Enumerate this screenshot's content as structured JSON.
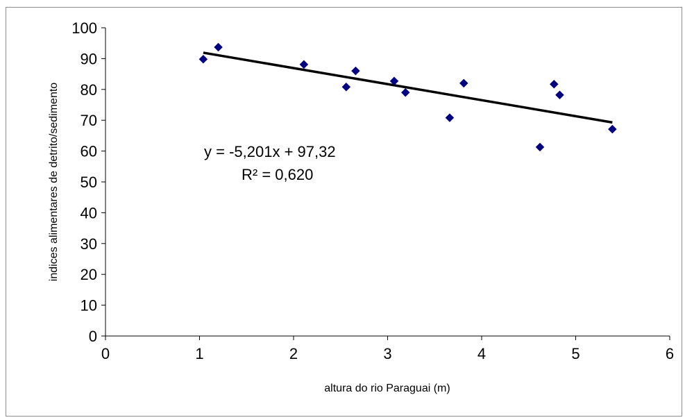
{
  "chart_data": {
    "type": "scatter",
    "title": "",
    "xlabel": "altura do rio Paraguai (m)",
    "ylabel": "indices alimentares de detrito/sedimento",
    "xlim": [
      0,
      6
    ],
    "ylim": [
      0,
      100
    ],
    "x_ticks": [
      "0",
      "1",
      "2",
      "3",
      "4",
      "5",
      "6"
    ],
    "y_ticks": [
      "0",
      "10",
      "20",
      "30",
      "40",
      "50",
      "60",
      "70",
      "80",
      "90",
      "100"
    ],
    "grid": false,
    "legend": "none",
    "marker_color": "#000080",
    "trendline_color": "#000000",
    "points": [
      {
        "x": 1.04,
        "y": 89.8
      },
      {
        "x": 1.2,
        "y": 93.7
      },
      {
        "x": 2.11,
        "y": 88.1
      },
      {
        "x": 2.56,
        "y": 80.8
      },
      {
        "x": 2.66,
        "y": 86.0
      },
      {
        "x": 3.07,
        "y": 82.7
      },
      {
        "x": 3.19,
        "y": 79.0
      },
      {
        "x": 3.66,
        "y": 70.8
      },
      {
        "x": 3.81,
        "y": 82.0
      },
      {
        "x": 4.62,
        "y": 61.3
      },
      {
        "x": 4.77,
        "y": 81.7
      },
      {
        "x": 4.83,
        "y": 78.2
      },
      {
        "x": 5.39,
        "y": 67.1
      }
    ],
    "trendline": {
      "slope": -5.201,
      "intercept": 97.32,
      "x_range": [
        1.04,
        5.39
      ]
    },
    "annotations": {
      "equation": "y = -5,201x + 97,32",
      "r_squared": "R² = 0,620"
    }
  }
}
